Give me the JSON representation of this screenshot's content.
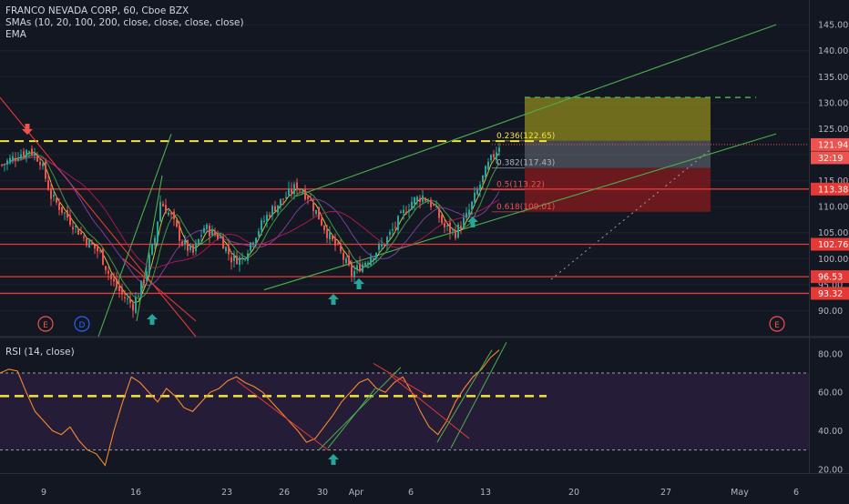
{
  "header": {
    "title": "FRANCO NEVADA CORP, 60, Cboe BZX",
    "indicator_1": "SMAs (10, 20, 100, 200, close, close, close, close)",
    "indicator_2": "EMA"
  },
  "rsi_panel": {
    "label": "RSI (14, close)"
  },
  "colors": {
    "background": "#131722",
    "up": "#26a69a",
    "down": "#ef5350",
    "support_line": "#e53935",
    "channel": "#4caf50",
    "dashed_level": "#f5e23a",
    "rsi": "#f5892f",
    "rsi_band": "#2a1f3d",
    "target_zone": "#8f8a1e",
    "stop_zone": "#7a1a1f"
  },
  "chart_data": [
    {
      "type": "candlestick",
      "title": "FRANCO NEVADA CORP, 60, Cboe BZX",
      "ylim": [
        85,
        148
      ],
      "y_ticks": [
        90,
        95,
        100,
        105,
        110,
        115,
        120,
        125,
        130,
        135,
        140,
        145
      ],
      "y_tick_labels": [
        "90.00",
        "95.00",
        "100.00",
        "105.00",
        "110.00",
        "115.00",
        "120.00",
        "125.00",
        "130.00",
        "135.00",
        "140.00",
        "145.00"
      ],
      "x_tick_labels": [
        "9",
        "16",
        "23",
        "26",
        "30",
        "Apr",
        "6",
        "13",
        "20",
        "27",
        "May",
        "6"
      ],
      "horizontal_levels": [
        113.38,
        102.76,
        96.53,
        93.32
      ],
      "dashed_level": 122.6,
      "target_level": 131.0,
      "price_tags": [
        {
          "label": "121.94",
          "value": 121.94,
          "color": "#ef5350"
        },
        {
          "label": "32:19",
          "value": 119.4,
          "color": "#ef5350"
        },
        {
          "label": "113.38",
          "value": 113.38,
          "color": "#e53935"
        },
        {
          "label": "102.76",
          "value": 102.76,
          "color": "#e53935"
        },
        {
          "label": "96.53",
          "value": 96.53,
          "color": "#e53935"
        },
        {
          "label": "93.32",
          "value": 93.32,
          "color": "#e53935"
        }
      ],
      "fib_levels": [
        {
          "label": "0.236(122.65)",
          "value": 122.65,
          "color": "#f5e23a"
        },
        {
          "label": "0.382(117.43)",
          "value": 117.43,
          "color": "#b2b5be"
        },
        {
          "label": "0.5(113.22)",
          "value": 113.22,
          "color": "#ef5350"
        },
        {
          "label": "0.618(109.01)",
          "value": 109.01,
          "color": "#ef5350"
        }
      ],
      "event_markers": [
        "E",
        "D",
        "E"
      ],
      "close_path": [
        [
          0,
          118
        ],
        [
          6,
          120
        ],
        [
          10,
          121
        ],
        [
          14,
          119
        ],
        [
          18,
          112
        ],
        [
          24,
          108
        ],
        [
          30,
          104
        ],
        [
          36,
          101
        ],
        [
          40,
          96
        ],
        [
          44,
          93
        ],
        [
          48,
          91
        ],
        [
          52,
          96
        ],
        [
          56,
          104
        ],
        [
          58,
          111
        ],
        [
          62,
          108
        ],
        [
          66,
          103
        ],
        [
          70,
          101
        ],
        [
          74,
          106
        ],
        [
          80,
          104
        ],
        [
          84,
          100
        ],
        [
          88,
          100
        ],
        [
          92,
          104
        ],
        [
          98,
          109
        ],
        [
          104,
          112
        ],
        [
          108,
          114
        ],
        [
          112,
          112
        ],
        [
          116,
          108
        ],
        [
          120,
          104
        ],
        [
          124,
          101
        ],
        [
          128,
          97
        ],
        [
          132,
          99
        ],
        [
          136,
          101
        ],
        [
          140,
          103
        ],
        [
          146,
          108
        ],
        [
          150,
          111
        ],
        [
          154,
          112
        ],
        [
          158,
          110
        ],
        [
          162,
          106
        ],
        [
          166,
          105
        ],
        [
          170,
          108
        ],
        [
          174,
          113
        ],
        [
          178,
          118
        ],
        [
          182,
          121.9
        ]
      ]
    },
    {
      "type": "line",
      "title": "RSI (14, close)",
      "ylim": [
        18,
        88
      ],
      "y_ticks": [
        20,
        40,
        60,
        80
      ],
      "y_tick_labels": [
        "20.00",
        "40.00",
        "60.00",
        "80.00"
      ],
      "upper_band": 70,
      "lower_band": 30,
      "dashed_level": 58,
      "series": [
        {
          "values": [
            70,
            72,
            71,
            60,
            50,
            45,
            40,
            38,
            42,
            35,
            30,
            28,
            22,
            40,
            55,
            68,
            65,
            60,
            55,
            62,
            58,
            52,
            50,
            55,
            60,
            62,
            66,
            68,
            65,
            63,
            60,
            55,
            50,
            45,
            40,
            34,
            36,
            42,
            48,
            55,
            60,
            65,
            67,
            62,
            60,
            65,
            68,
            60,
            50,
            42,
            38,
            45,
            55,
            62,
            68,
            72,
            78,
            82
          ]
        }
      ]
    }
  ]
}
